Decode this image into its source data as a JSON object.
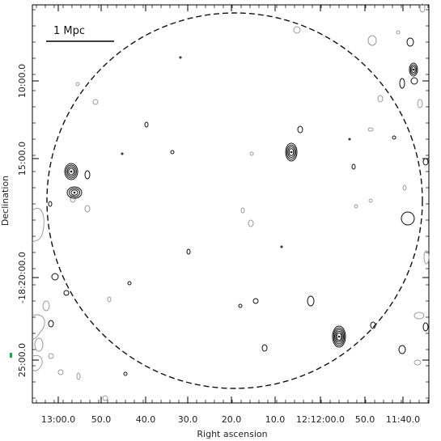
{
  "chart_data": {
    "type": "contour map",
    "xlabel": "Right ascension",
    "ylabel": "Declination",
    "x_ticks": [
      "13:00.0",
      "50.0",
      "40.0",
      "30.0",
      "20.0",
      "10.0",
      "12:12:00.0",
      "50.0",
      "11:40.0"
    ],
    "y_ticks": [
      "10:00.0",
      "15:00.0",
      "-18:20:00.0",
      "25:00.0"
    ],
    "scale_bar": {
      "label": "1 Mpc"
    },
    "circle": {
      "style": "dashed"
    },
    "contour_colors": {
      "primary": "#111111",
      "secondary": "#9a9a9a"
    },
    "sources": [
      {
        "name": "source-left-upper",
        "levels": 4
      },
      {
        "name": "source-left-lower",
        "levels": 3
      },
      {
        "name": "source-center",
        "levels": 4
      },
      {
        "name": "source-lower-right",
        "levels": 5
      },
      {
        "name": "source-upper-right",
        "levels": 3
      }
    ]
  }
}
